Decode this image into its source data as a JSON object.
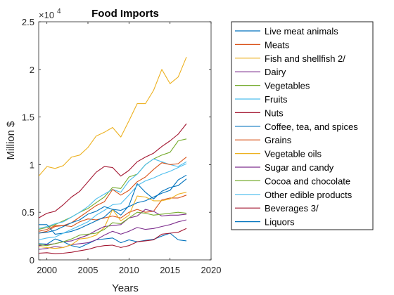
{
  "chart_data": {
    "type": "line",
    "title": "Food Imports",
    "xlabel": "Years",
    "ylabel": "Million $",
    "exponent_label": "×10",
    "exponent_power": "4",
    "xlim": [
      1999,
      2020
    ],
    "ylim": [
      0,
      25000
    ],
    "xticks": [
      2000,
      2005,
      2010,
      2015,
      2020
    ],
    "yticks": [
      0,
      5000,
      10000,
      15000,
      20000,
      25000
    ],
    "ytick_labels": [
      "0",
      "0.5",
      "1",
      "1.5",
      "2",
      "2.5"
    ],
    "grid": false,
    "legend_position": "outside-right",
    "x": [
      1999,
      2000,
      2001,
      2002,
      2003,
      2004,
      2005,
      2006,
      2007,
      2008,
      2009,
      2010,
      2011,
      2012,
      2013,
      2014,
      2015,
      2016,
      2017
    ],
    "series": [
      {
        "name": "Live meat animals",
        "color": "#0072BD",
        "values": [
          1700,
          1650,
          2200,
          1900,
          1500,
          1300,
          1700,
          2100,
          2200,
          2300,
          1800,
          2100,
          1900,
          2050,
          2150,
          2500,
          2800,
          2100,
          2000
        ]
      },
      {
        "name": "Meats",
        "color": "#D95319",
        "values": [
          2800,
          3000,
          3500,
          3600,
          3500,
          4000,
          4300,
          4200,
          4400,
          4600,
          4400,
          5000,
          5300,
          5000,
          5100,
          6300,
          6500,
          6500,
          6800
        ]
      },
      {
        "name": "Fish and shellfish 2/",
        "color": "#EDB120",
        "values": [
          8800,
          9800,
          9600,
          9900,
          10800,
          11000,
          11800,
          13000,
          13400,
          13900,
          12900,
          14600,
          16400,
          16400,
          17800,
          20000,
          18500,
          19200,
          21300
        ]
      },
      {
        "name": "Dairy",
        "color": "#7E2F8E",
        "values": [
          1100,
          1200,
          1400,
          1300,
          1600,
          1700,
          1800,
          2100,
          2600,
          3000,
          2700,
          3000,
          3400,
          3200,
          3300,
          3500,
          3700,
          4000,
          4200
        ]
      },
      {
        "name": "Vegetables",
        "color": "#77AC30",
        "values": [
          3200,
          3400,
          3700,
          4100,
          4500,
          5000,
          5400,
          6000,
          6600,
          7600,
          7500,
          8700,
          9000,
          10000,
          10600,
          11000,
          11300,
          12500,
          12700
        ]
      },
      {
        "name": "Fruits",
        "color": "#4DBEEE",
        "values": [
          3300,
          3500,
          3800,
          4000,
          4500,
          5000,
          5600,
          6400,
          6900,
          7400,
          7100,
          8300,
          9000,
          10000,
          10600,
          10300,
          10000,
          9800,
          10300
        ]
      },
      {
        "name": "Nuts",
        "color": "#A2142F",
        "values": [
          700,
          750,
          650,
          700,
          800,
          950,
          1100,
          1350,
          1500,
          1550,
          1300,
          1500,
          1900,
          2000,
          2100,
          2700,
          2800,
          2900,
          3300
        ]
      },
      {
        "name": "Coffee, tea, and spices",
        "color": "#0072BD",
        "values": [
          3700,
          3700,
          2700,
          2800,
          3000,
          3300,
          3700,
          4100,
          4500,
          5300,
          4700,
          5700,
          8000,
          7100,
          6400,
          7200,
          7600,
          7800,
          8500
        ]
      },
      {
        "name": "Grains",
        "color": "#D95319",
        "values": [
          3000,
          3200,
          3600,
          3600,
          3900,
          4500,
          5100,
          5700,
          6100,
          7400,
          6800,
          7300,
          8200,
          8700,
          9500,
          10200,
          10000,
          10100,
          10800
        ]
      },
      {
        "name": "Vegetable oils",
        "color": "#EDB120",
        "values": [
          1400,
          1300,
          1200,
          1300,
          1600,
          2200,
          2300,
          2600,
          3400,
          5300,
          4100,
          4700,
          6700,
          6600,
          6200,
          6200,
          6400,
          6900,
          7100
        ]
      },
      {
        "name": "Sugar and candy",
        "color": "#7E2F8E",
        "values": [
          1500,
          1600,
          1700,
          1900,
          2000,
          2300,
          2600,
          3100,
          3500,
          3600,
          3700,
          4400,
          4600,
          5300,
          5100,
          4600,
          4700,
          4700,
          4800
        ]
      },
      {
        "name": "Cocoa and chocolate",
        "color": "#77AC30",
        "values": [
          1600,
          1500,
          1700,
          1900,
          2200,
          2600,
          2700,
          2800,
          3200,
          3900,
          3800,
          4400,
          5000,
          4900,
          4700,
          4800,
          4900,
          5000,
          4900
        ]
      },
      {
        "name": "Other edible products",
        "color": "#4DBEEE",
        "values": [
          2100,
          2300,
          2400,
          2800,
          3200,
          3600,
          4000,
          4700,
          5200,
          5800,
          5900,
          6800,
          7800,
          8300,
          8600,
          9000,
          9300,
          9700,
          10100
        ]
      },
      {
        "name": "Beverages 3/",
        "color": "#A2142F",
        "values": [
          4400,
          4900,
          5100,
          5800,
          6600,
          7200,
          8200,
          9200,
          9800,
          9700,
          8800,
          9400,
          10300,
          10800,
          11200,
          11900,
          12500,
          13200,
          14300
        ]
      },
      {
        "name": "Liquors",
        "color": "#0072BD",
        "values": [
          2800,
          2900,
          3100,
          3500,
          3900,
          4200,
          4800,
          5100,
          5600,
          5300,
          5200,
          5600,
          6000,
          6200,
          6600,
          7000,
          7300,
          8400,
          8900
        ]
      }
    ]
  }
}
